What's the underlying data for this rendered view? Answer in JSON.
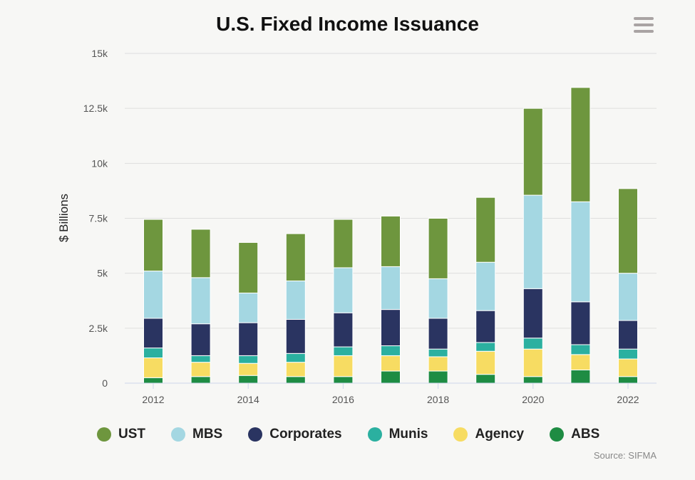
{
  "header": {
    "title": "U.S. Fixed Income Issuance",
    "menu_icon": "hamburger-menu-icon"
  },
  "source": "Source: SIFMA",
  "chart_data": {
    "type": "bar",
    "stacked": true,
    "title": "U.S. Fixed Income Issuance",
    "xlabel": "",
    "ylabel": "$ Billions",
    "ylim": [
      0,
      15000
    ],
    "yticks": [
      0,
      2500,
      5000,
      7500,
      10000,
      12500,
      15000
    ],
    "ytick_labels": [
      "0",
      "2.5k",
      "5k",
      "7.5k",
      "10k",
      "12.5k",
      "15k"
    ],
    "xtick_labels": [
      "2012",
      "2014",
      "2016",
      "2018",
      "2020",
      "2022"
    ],
    "grid": true,
    "legend_position": "bottom",
    "categories": [
      "2012",
      "2013",
      "2014",
      "2015",
      "2016",
      "2017",
      "2018",
      "2019",
      "2020",
      "2021",
      "2022"
    ],
    "series": [
      {
        "name": "ABS",
        "color": "#1e8c43",
        "values": [
          250,
          300,
          350,
          300,
          300,
          550,
          550,
          400,
          300,
          600,
          300
        ]
      },
      {
        "name": "Agency",
        "color": "#f7dc62",
        "values": [
          900,
          650,
          550,
          650,
          950,
          700,
          650,
          1050,
          1250,
          700,
          800
        ]
      },
      {
        "name": "Munis",
        "color": "#2bb0a0",
        "values": [
          450,
          300,
          350,
          400,
          400,
          450,
          350,
          400,
          500,
          450,
          450
        ]
      },
      {
        "name": "Corporates",
        "color": "#2a3461",
        "values": [
          1350,
          1450,
          1500,
          1550,
          1550,
          1650,
          1400,
          1450,
          2250,
          1950,
          1300
        ]
      },
      {
        "name": "MBS",
        "color": "#a4d7e2",
        "values": [
          2150,
          2100,
          1350,
          1750,
          2050,
          1950,
          1800,
          2200,
          4250,
          4550,
          2150
        ]
      },
      {
        "name": "UST",
        "color": "#6e963e",
        "values": [
          2350,
          2200,
          2300,
          2150,
          2200,
          2300,
          2750,
          2950,
          3950,
          5200,
          3850
        ]
      }
    ]
  },
  "legend": {
    "items": [
      {
        "label": "UST",
        "color": "#6e963e"
      },
      {
        "label": "MBS",
        "color": "#a4d7e2"
      },
      {
        "label": "Corporates",
        "color": "#2a3461"
      },
      {
        "label": "Munis",
        "color": "#2bb0a0"
      },
      {
        "label": "Agency",
        "color": "#f7dc62"
      },
      {
        "label": "ABS",
        "color": "#1e8c43"
      }
    ]
  }
}
